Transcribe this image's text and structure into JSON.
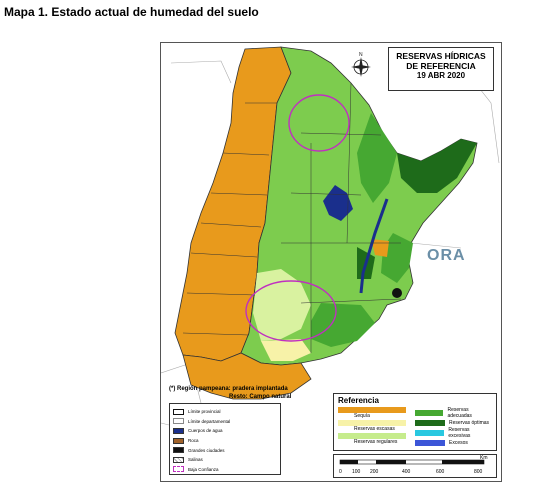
{
  "page": {
    "title": "Mapa 1. Estado actual de humedad del suelo"
  },
  "map": {
    "ref_title_line1": "RESERVAS HÍDRICAS",
    "ref_title_line2": "DE REFERENCIA",
    "ref_title_line3": "19 ABR 2020",
    "logo_text": "ORA",
    "compass_icon": "north-arrow-icon",
    "footnote_line1": "(*) Región pampeana: pradera implantada",
    "footnote_line2": "Resto: Campo natural"
  },
  "legend_left": {
    "items": [
      {
        "label": "Límite provincial",
        "color": "#ffffff"
      },
      {
        "label": "Límite departamental",
        "color": "#ffffff"
      },
      {
        "label": "Cuerpos de agua",
        "color": "#1a2f8c"
      },
      {
        "label": "Roca",
        "color": "#a0622a"
      },
      {
        "label": "Grandes ciudades",
        "color": "#111111"
      },
      {
        "label": "Salinas",
        "color": "#ffffff"
      },
      {
        "label": "Baja Confianza",
        "color": "#c030c0"
      }
    ]
  },
  "legend_ref": {
    "heading": "Referencia",
    "items": [
      {
        "label": "Sequía",
        "color": "#e89a1c"
      },
      {
        "label": "Reservas escasas",
        "color": "#f7f2a8"
      },
      {
        "label": "Reservas regulares",
        "color": "#c6ec8c"
      },
      {
        "label": "Reservas adecuadas",
        "color": "#46a832"
      },
      {
        "label": "Reservas óptimas",
        "color": "#1e6b1a"
      },
      {
        "label": "Reservas excesivas",
        "color": "#29c8e0"
      },
      {
        "label": "Excesos",
        "color": "#3c56d8"
      }
    ]
  },
  "scale": {
    "unit": "Km",
    "ticks": [
      "0",
      "100",
      "200",
      "400",
      "600",
      "800"
    ]
  },
  "colors": {
    "drought": "#e89a1c",
    "regular": "#c6ec8c",
    "adequate": "#46a832",
    "optimal": "#1e6b1a",
    "water": "#1a2f8c",
    "outside": "#ffffff",
    "low_confidence": "#c030c0"
  }
}
